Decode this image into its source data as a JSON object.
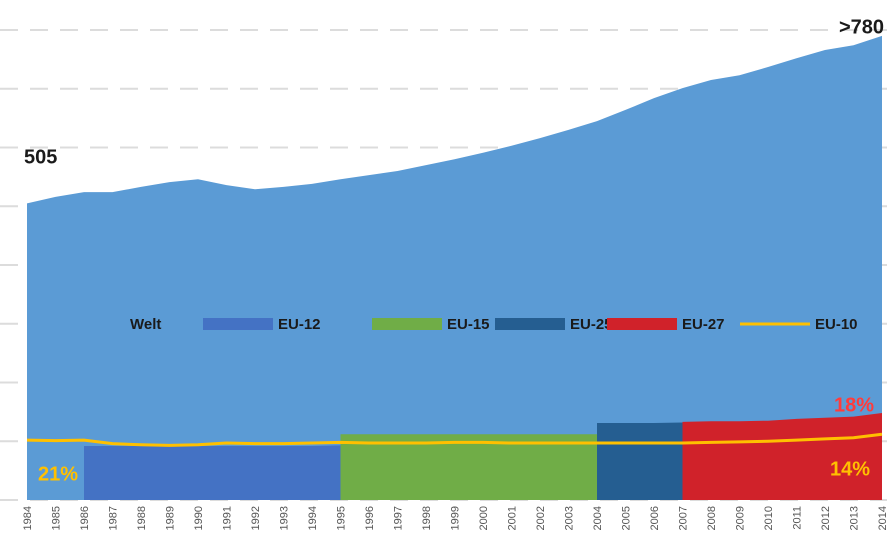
{
  "chart_data": {
    "type": "area",
    "categories": [
      "1984",
      "1985",
      "1986",
      "1987",
      "1988",
      "1989",
      "1990",
      "1991",
      "1992",
      "1993",
      "1994",
      "1995",
      "1996",
      "1997",
      "1998",
      "1999",
      "2000",
      "2001",
      "2002",
      "2003",
      "2004",
      "2005",
      "2006",
      "2007",
      "2008",
      "2009",
      "2010",
      "2011",
      "2012",
      "2013",
      "2014"
    ],
    "ylim": [
      0,
      800
    ],
    "yticks": [
      0,
      100,
      200,
      300,
      400,
      500,
      600,
      700,
      800
    ],
    "grid": true,
    "series": [
      {
        "name": "Welt",
        "color": "#5b9bd5",
        "values": [
          505,
          516,
          524,
          524,
          533,
          541,
          546,
          536,
          529,
          533,
          538,
          546,
          553,
          560,
          570,
          580,
          591,
          603,
          616,
          630,
          645,
          664,
          684,
          701,
          715,
          723,
          737,
          752,
          766,
          774,
          790
        ]
      },
      {
        "name": "EU-12",
        "color": "#4472c4",
        "values": [
          null,
          null,
          92,
          92,
          92,
          92,
          92,
          92,
          92,
          92,
          92,
          93,
          null,
          null,
          null,
          null,
          null,
          null,
          null,
          null,
          null,
          null,
          null,
          null,
          null,
          null,
          null,
          null,
          null,
          null,
          null
        ]
      },
      {
        "name": "EU-15",
        "color": "#70ad47",
        "values": [
          null,
          null,
          null,
          null,
          null,
          null,
          null,
          null,
          null,
          null,
          null,
          112,
          112,
          112,
          112,
          112,
          112,
          112,
          112,
          112,
          112,
          null,
          null,
          null,
          null,
          null,
          null,
          null,
          null,
          null,
          null
        ]
      },
      {
        "name": "EU-25",
        "color": "#255e91",
        "values": [
          null,
          null,
          null,
          null,
          null,
          null,
          null,
          null,
          null,
          null,
          null,
          null,
          null,
          null,
          null,
          null,
          null,
          null,
          null,
          null,
          131,
          131,
          131,
          132,
          null,
          null,
          null,
          null,
          null,
          null,
          null
        ]
      },
      {
        "name": "EU-27",
        "color": "#d0222a",
        "values": [
          null,
          null,
          null,
          null,
          null,
          null,
          null,
          null,
          null,
          null,
          null,
          null,
          null,
          null,
          null,
          null,
          null,
          null,
          null,
          null,
          null,
          null,
          null,
          133,
          134,
          134,
          135,
          138,
          140,
          142,
          148
        ]
      },
      {
        "name": "EU-10",
        "color": "#ffc000",
        "type": "line",
        "values": [
          102,
          101,
          102,
          96,
          94,
          93,
          94,
          97,
          96,
          96,
          97,
          98,
          97,
          97,
          97,
          98,
          98,
          97,
          97,
          97,
          97,
          97,
          97,
          97,
          98,
          99,
          100,
          102,
          104,
          106,
          112
        ]
      }
    ],
    "annotations": [
      "505",
      ">780",
      "21%",
      "18%",
      "14%"
    ]
  }
}
